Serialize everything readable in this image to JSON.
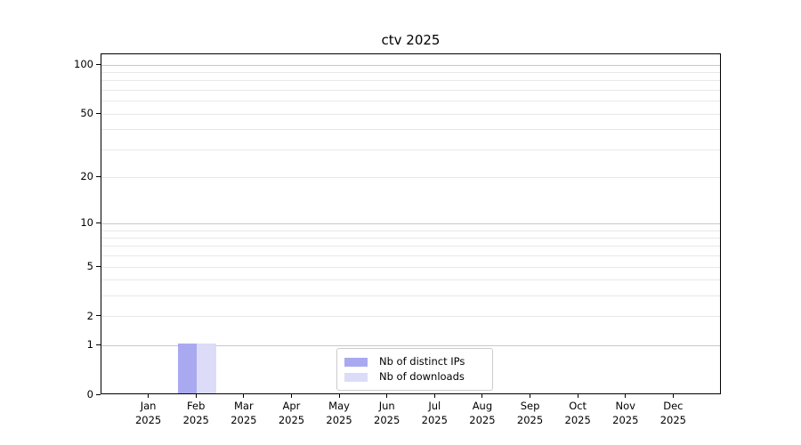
{
  "chart_data": {
    "type": "bar",
    "title": "ctv 2025",
    "categories": [
      "Jan 2025",
      "Feb 2025",
      "Mar 2025",
      "Apr 2025",
      "May 2025",
      "Jun 2025",
      "Jul 2025",
      "Aug 2025",
      "Sep 2025",
      "Oct 2025",
      "Nov 2025",
      "Dec 2025"
    ],
    "series": [
      {
        "name": "Nb of distinct IPs",
        "color": "#a9a9f0",
        "values": [
          0,
          1,
          0,
          0,
          0,
          0,
          0,
          0,
          0,
          0,
          0,
          0
        ]
      },
      {
        "name": "Nb of downloads",
        "color": "#dcdcf8",
        "values": [
          0,
          1,
          0,
          0,
          0,
          0,
          0,
          0,
          0,
          0,
          0,
          0
        ]
      }
    ],
    "xlabel": "",
    "ylabel": "",
    "y_axis": {
      "scale": "log1p",
      "ylim": [
        0,
        116
      ],
      "tick_values": [
        0,
        1,
        2,
        5,
        10,
        20,
        50,
        100
      ],
      "tick_labels": [
        "0",
        "1",
        "2",
        "5",
        "10",
        "20",
        "50",
        "100"
      ],
      "major_gridlines": [
        1,
        10,
        100
      ],
      "minor_gridlines": [
        2,
        3,
        4,
        5,
        6,
        7,
        8,
        9,
        20,
        30,
        40,
        50,
        60,
        70,
        80,
        90
      ]
    },
    "legend": {
      "position": "lower center",
      "entries": [
        "Nb of distinct IPs",
        "Nb of downloads"
      ]
    },
    "grid": true
  },
  "colors": {
    "background": "#ffffff",
    "spine": "#000000",
    "text": "#000000",
    "major_grid": "#c9c9c9",
    "minor_grid": "#e8e8e8",
    "legend_border": "#cccccc"
  }
}
